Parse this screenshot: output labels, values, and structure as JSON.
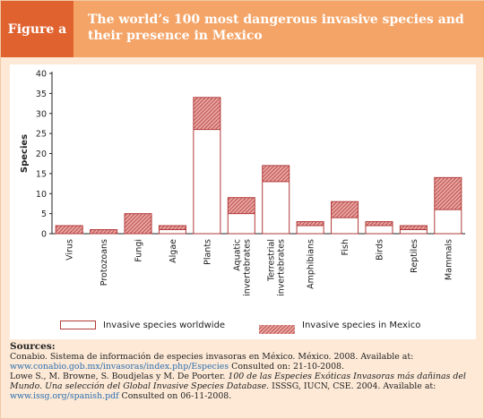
{
  "figure": {
    "label": "Figure a",
    "title": "The world’s 100 most dangerous invasive species and their presence in Mexico"
  },
  "chart_data": {
    "type": "bar",
    "ylabel": "Species",
    "xlabel": "",
    "ylim": [
      0,
      40
    ],
    "yticks": [
      0,
      5,
      10,
      15,
      20,
      25,
      30,
      35,
      40
    ],
    "categories": [
      "Virus",
      "Protozoans",
      "Fungi",
      "Algae",
      "Plants",
      "Aquatic invertebrates",
      "Terrestrial invertebrates",
      "Amphibians",
      "Fish",
      "Birds",
      "Reptiles",
      "Mammals"
    ],
    "series": [
      {
        "name": "Invasive species worldwide",
        "values": [
          2,
          1,
          5,
          2,
          34,
          9,
          17,
          3,
          8,
          3,
          2,
          14
        ]
      },
      {
        "name": "Invasive species in Mexico",
        "values": [
          0,
          0,
          0,
          1,
          26,
          5,
          13,
          2,
          4,
          2,
          1,
          6
        ]
      }
    ],
    "legend_position": "bottom",
    "grid": false,
    "colors": {
      "bar_edge": "#b23a3a",
      "hatch": "#c8504f",
      "worldwide_fill": "#ffffff"
    }
  },
  "legend": {
    "worldwide": "Invasive species worldwide",
    "mexico": "Invasive species in Mexico"
  },
  "sources": {
    "heading": "Sources:",
    "line1": "Conabio. Sistema de información de especies invasoras en México. México. 2008. Available at:",
    "link1": "www.conabio.gob.mx/invasoras/index.php/Especies",
    "consulted1": " Consulted on: 21-10-2008.",
    "line3_prefix": "Lowe S., M. Browne, S. Boudjelas y M. De Poorter. ",
    "line3_italic": "100 de las Especies Exóticas Invasoras más dañinas del Mundo. Una selección del Global Invasive Species Database",
    "line3_suffix": ". ISSSG, IUCN, CSE. 2004. Available at:",
    "link2": "www.issg.org/spanish.pdf",
    "consulted2": " Consulted on 06-11-2008."
  }
}
